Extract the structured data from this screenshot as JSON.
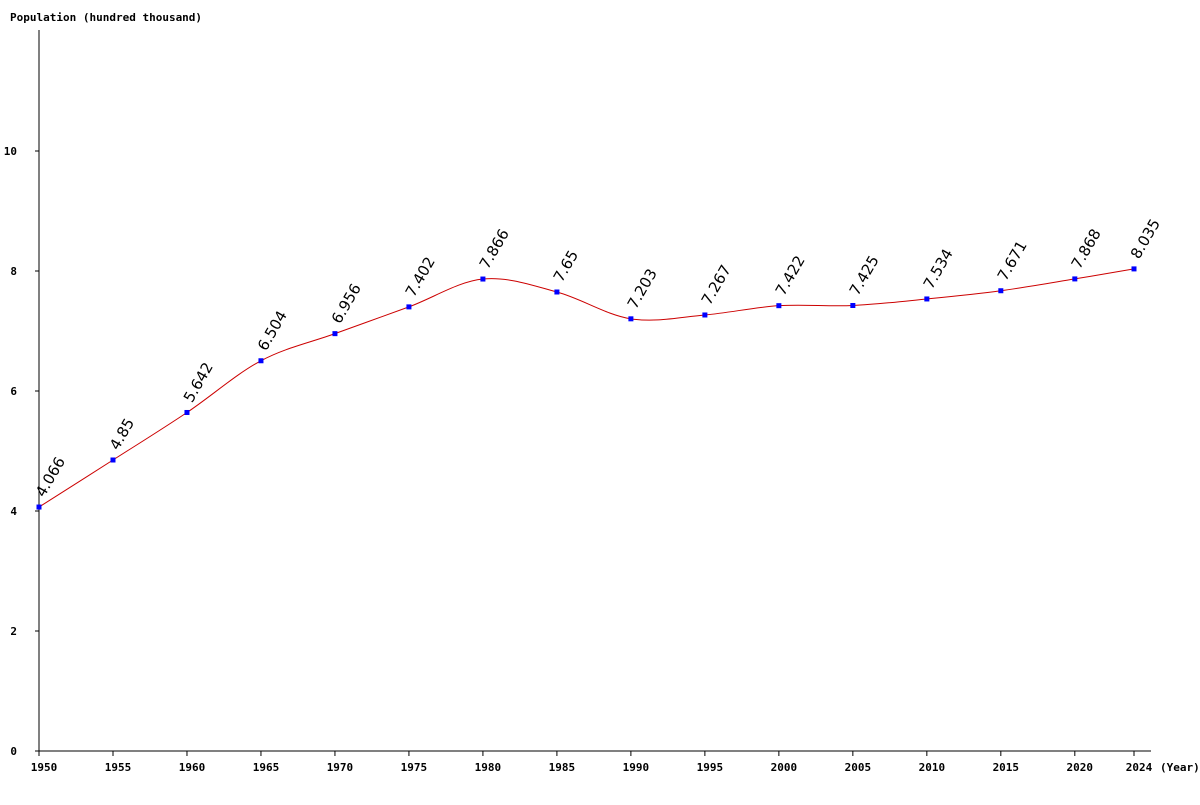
{
  "chart_data": {
    "type": "line",
    "title": "",
    "ylabel": "Population (hundred thousand)",
    "xlabel": "(Year)",
    "ylim": [
      0,
      12
    ],
    "yticks": [
      0,
      2,
      4,
      6,
      8,
      10
    ],
    "grid": false,
    "x": [
      1950,
      1955,
      1960,
      1965,
      1970,
      1975,
      1980,
      1985,
      1990,
      1995,
      2000,
      2005,
      2010,
      2015,
      2020,
      2024
    ],
    "values": [
      4.066,
      4.85,
      5.642,
      6.504,
      6.956,
      7.402,
      7.866,
      7.65,
      7.203,
      7.267,
      7.422,
      7.425,
      7.534,
      7.671,
      7.868,
      8.035
    ],
    "data_labels": [
      "4.066",
      "4.85",
      "5.642",
      "6.504",
      "6.956",
      "7.402",
      "7.866",
      "7.65",
      "7.203",
      "7.267",
      "7.422",
      "7.425",
      "7.534",
      "7.671",
      "7.868",
      "8.035"
    ],
    "colors": {
      "line": "#cc0000",
      "point": "#0000ff",
      "axis": "#000000"
    }
  }
}
